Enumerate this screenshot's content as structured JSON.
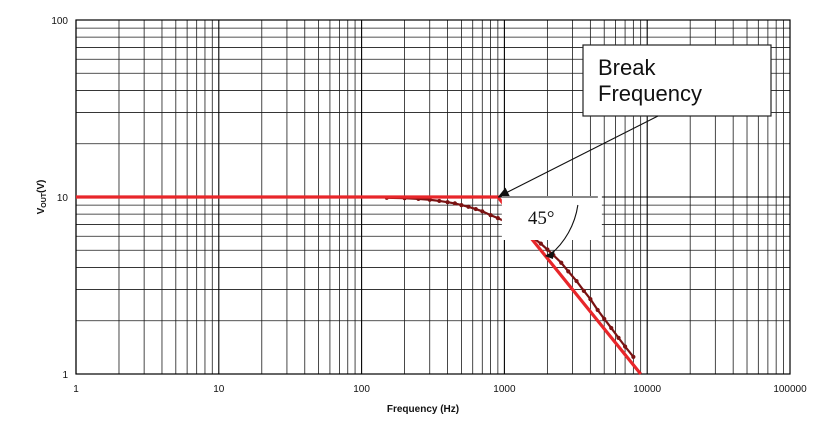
{
  "chart_data": {
    "type": "line",
    "title": "",
    "xlabel": "Frequency (Hz)",
    "ylabel_main": "V",
    "ylabel_sub": "OUT",
    "ylabel_tail": "(V)",
    "x_scale": "log",
    "y_scale": "log",
    "xlim": [
      1,
      100000
    ],
    "ylim": [
      1,
      100
    ],
    "grid": true,
    "x_ticks": [
      1,
      10,
      100,
      1000,
      10000,
      100000
    ],
    "x_tick_labels": [
      "1",
      "10",
      "100",
      "1000",
      "10000",
      "100000"
    ],
    "y_ticks": [
      1,
      10,
      100
    ],
    "y_tick_labels": [
      "1",
      "10",
      "100"
    ],
    "colors": {
      "asymptote": "#e8262a",
      "measured": "#7a1212",
      "grid": "#000000"
    },
    "series": [
      {
        "role": "asymptote",
        "x": [
          1,
          900,
          9000
        ],
        "y": [
          10,
          10,
          1
        ]
      },
      {
        "role": "measured",
        "x": [
          150,
          200,
          250,
          300,
          350,
          400,
          450,
          500,
          560,
          630,
          700,
          800,
          900,
          1000,
          1100,
          1250,
          1400,
          1600,
          1800,
          2000,
          2200,
          2500,
          2800,
          3200,
          3600,
          4000,
          4500,
          5000,
          5600,
          6300,
          7000,
          8000
        ],
        "y": [
          9.9,
          9.85,
          9.75,
          9.65,
          9.5,
          9.35,
          9.2,
          9.0,
          8.8,
          8.55,
          8.3,
          7.9,
          7.6,
          7.3,
          7.0,
          6.6,
          6.3,
          5.85,
          5.45,
          5.05,
          4.7,
          4.25,
          3.8,
          3.35,
          2.95,
          2.65,
          2.3,
          2.05,
          1.82,
          1.6,
          1.43,
          1.25
        ]
      }
    ],
    "annotations": {
      "callout_line1": "Break",
      "callout_line2": "Frequency",
      "angle": "45°",
      "break_point": {
        "x": 900,
        "y": 10
      },
      "angle_arc_start": {
        "x": 1800,
        "y": 5
      },
      "angle_arc_end": {
        "x": 1800,
        "y": 10
      }
    }
  }
}
